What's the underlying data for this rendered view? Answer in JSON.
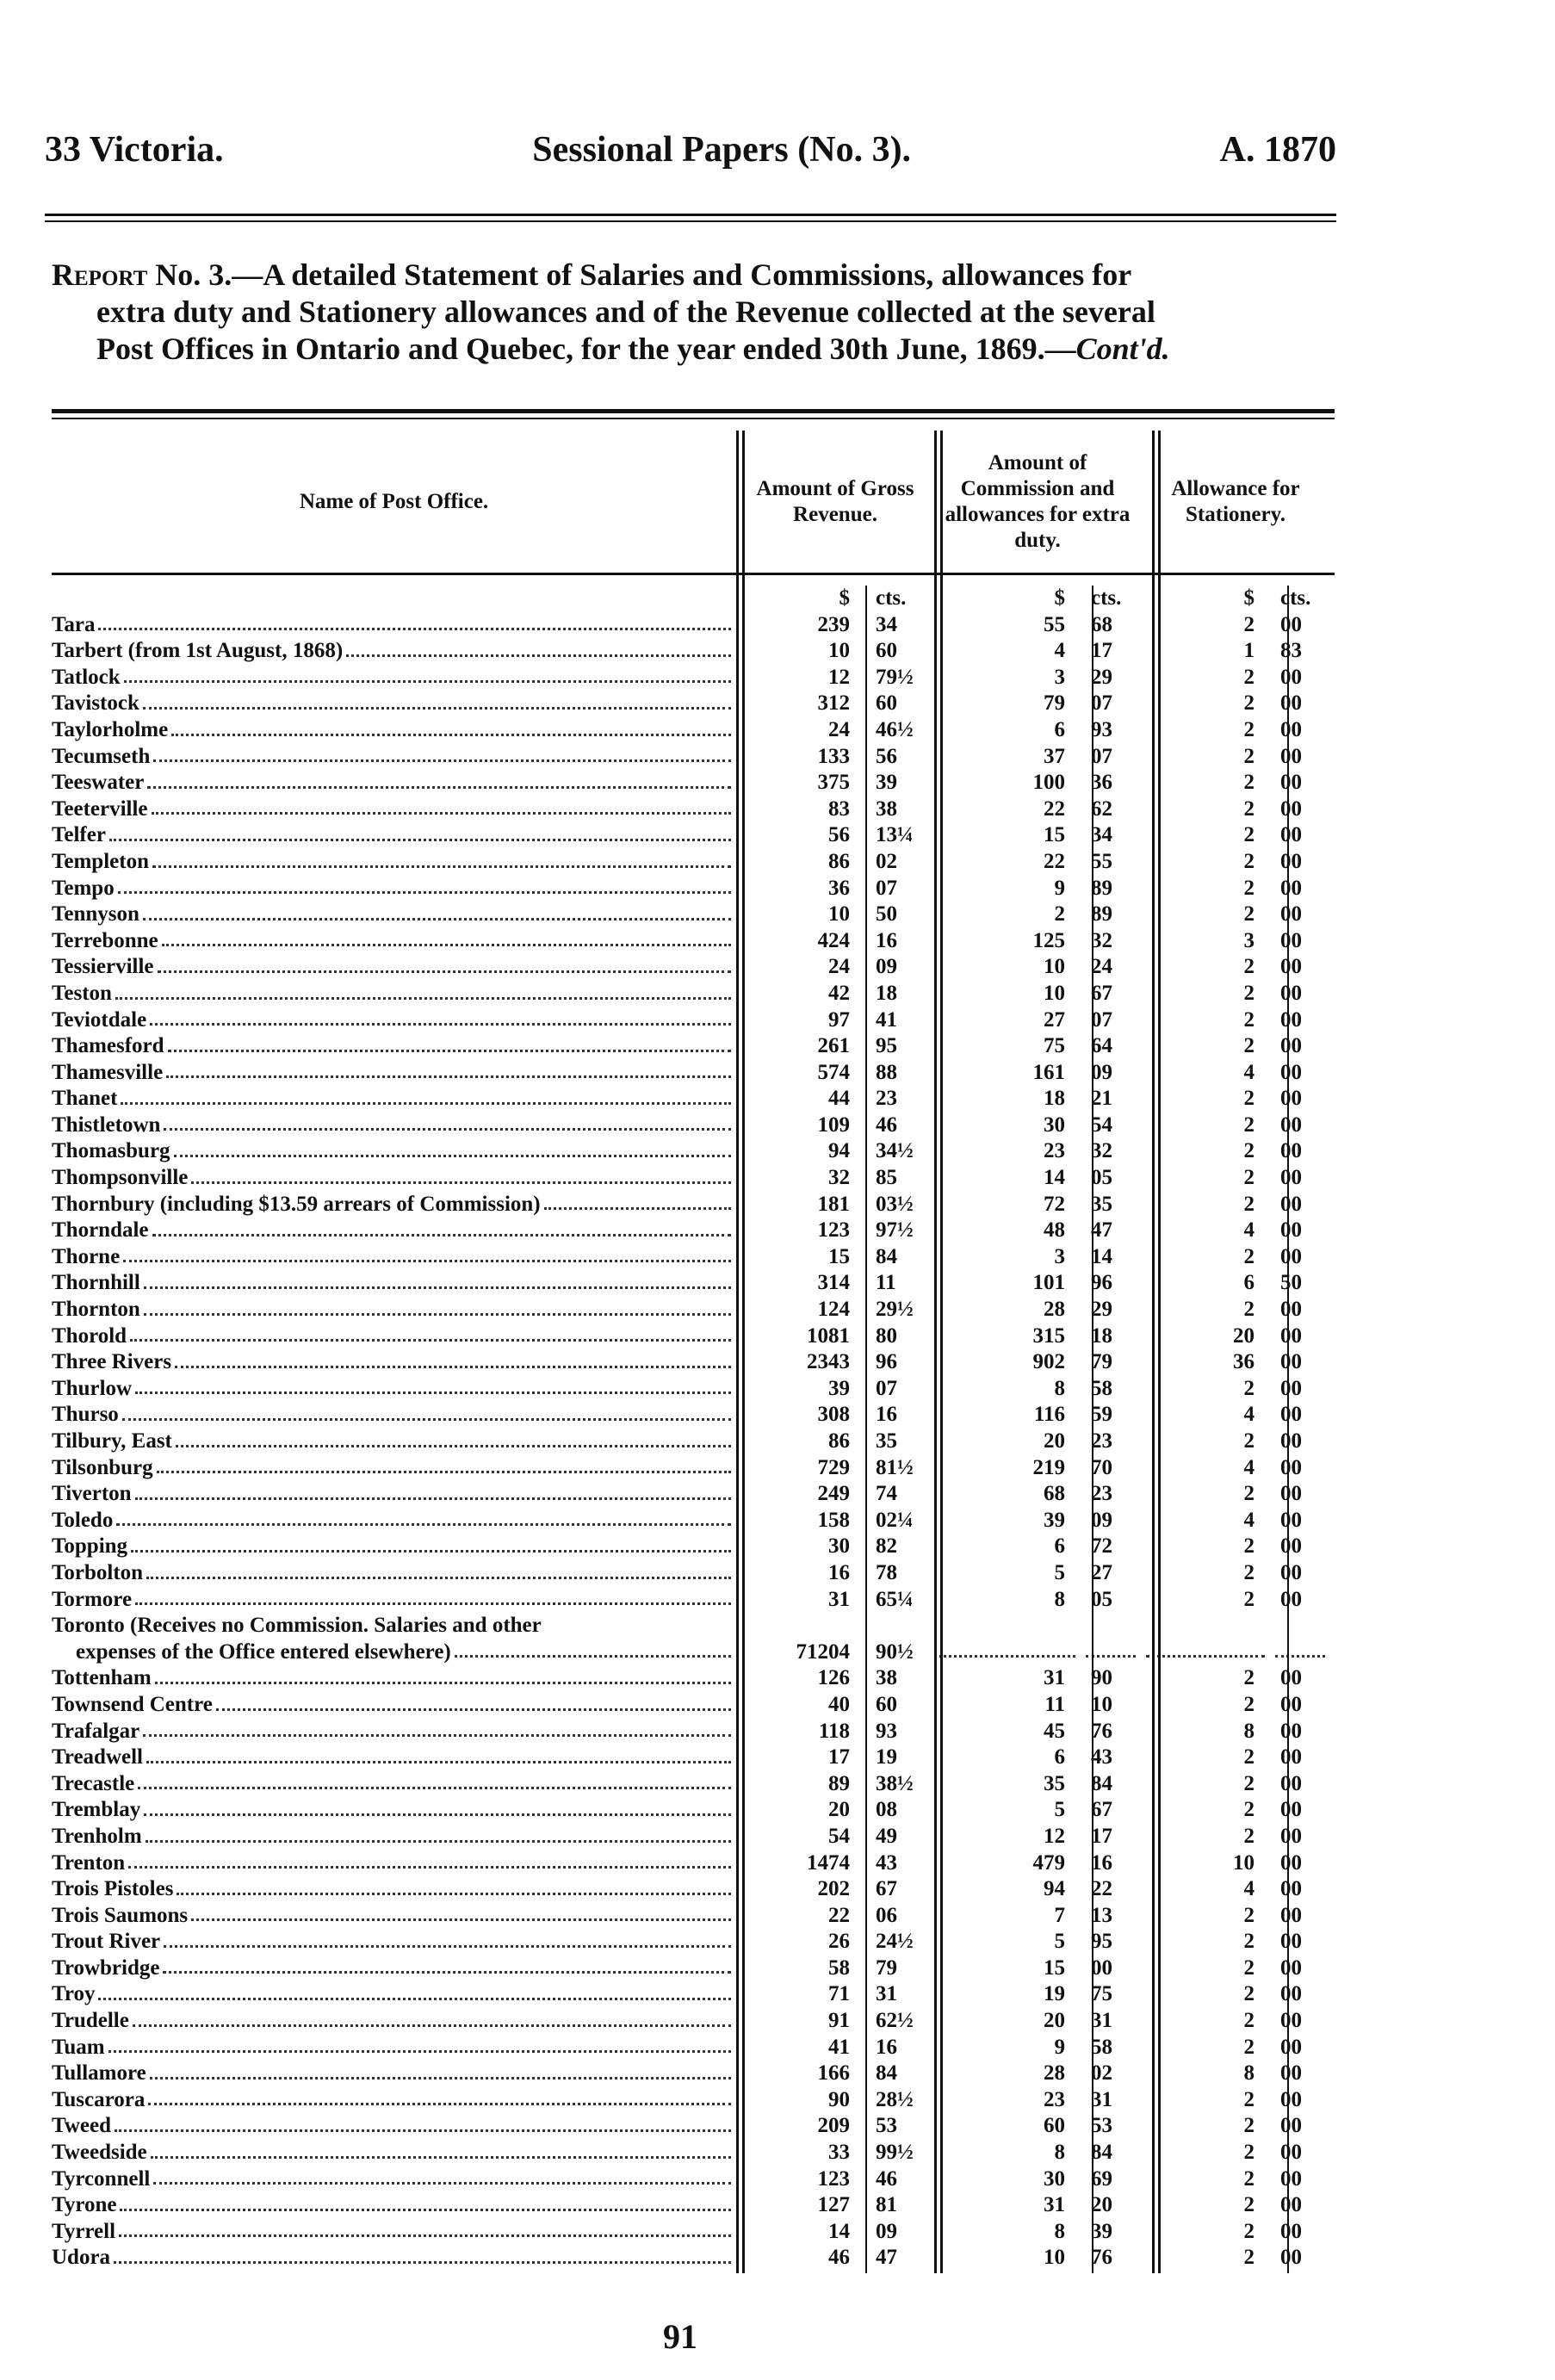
{
  "header": {
    "left": "33 Victoria.",
    "center": "Sessional Papers (No. 3).",
    "right": "A. 1870"
  },
  "title": {
    "report": "Report",
    "line1": " No. 3.—A detailed Statement of Salaries and Commissions, allowances for",
    "line2": "extra duty and Stationery allowances and of the Revenue collected at the several",
    "line3": "Post Offices in Ontario and Quebec, for the year ended 30th June, 1869.—",
    "contd": "Cont'd."
  },
  "columns": {
    "name": "Name of Post Office.",
    "gross": "Amount of Gross Revenue.",
    "commission": "Amount of Commission and allowances for extra duty.",
    "stationery": "Allowance for Stationery.",
    "dollar": "$",
    "cents": "cts."
  },
  "rows": [
    [
      "Tara",
      "239",
      "34",
      "55",
      "68",
      "2",
      "00"
    ],
    [
      "Tarbert (from 1st August, 1868)",
      "10",
      "60",
      "4",
      "17",
      "1",
      "83"
    ],
    [
      "Tatlock",
      "12",
      "79½",
      "3",
      "29",
      "2",
      "00"
    ],
    [
      "Tavistock",
      "312",
      "60",
      "79",
      "07",
      "2",
      "00"
    ],
    [
      "Taylorholme",
      "24",
      "46½",
      "6",
      "93",
      "2",
      "00"
    ],
    [
      "Tecumseth",
      "133",
      "56",
      "37",
      "07",
      "2",
      "00"
    ],
    [
      "Teeswater",
      "375",
      "39",
      "100",
      "36",
      "2",
      "00"
    ],
    [
      "Teeterville",
      "83",
      "38",
      "22",
      "62",
      "2",
      "00"
    ],
    [
      "Telfer",
      "56",
      "13¼",
      "15",
      "34",
      "2",
      "00"
    ],
    [
      "Templeton",
      "86",
      "02",
      "22",
      "55",
      "2",
      "00"
    ],
    [
      "Tempo",
      "36",
      "07",
      "9",
      "89",
      "2",
      "00"
    ],
    [
      "Tennyson",
      "10",
      "50",
      "2",
      "89",
      "2",
      "00"
    ],
    [
      "Terrebonne",
      "424",
      "16",
      "125",
      "32",
      "3",
      "00"
    ],
    [
      "Tessierville",
      "24",
      "09",
      "10",
      "24",
      "2",
      "00"
    ],
    [
      "Teston",
      "42",
      "18",
      "10",
      "67",
      "2",
      "00"
    ],
    [
      "Teviotdale",
      "97",
      "41",
      "27",
      "07",
      "2",
      "00"
    ],
    [
      "Thamesford",
      "261",
      "95",
      "75",
      "64",
      "2",
      "00"
    ],
    [
      "Thamesville",
      "574",
      "88",
      "161",
      "09",
      "4",
      "00"
    ],
    [
      "Thanet",
      "44",
      "23",
      "18",
      "21",
      "2",
      "00"
    ],
    [
      "Thistletown",
      "109",
      "46",
      "30",
      "54",
      "2",
      "00"
    ],
    [
      "Thomasburg",
      "94",
      "34½",
      "23",
      "32",
      "2",
      "00"
    ],
    [
      "Thompsonville",
      "32",
      "85",
      "14",
      "05",
      "2",
      "00"
    ],
    [
      "Thornbury (including $13.59 arrears of Commission)",
      "181",
      "03½",
      "72",
      "35",
      "2",
      "00"
    ],
    [
      "Thorndale",
      "123",
      "97½",
      "48",
      "47",
      "4",
      "00"
    ],
    [
      "Thorne",
      "15",
      "84",
      "3",
      "14",
      "2",
      "00"
    ],
    [
      "Thornhill",
      "314",
      "11",
      "101",
      "96",
      "6",
      "50"
    ],
    [
      "Thornton",
      "124",
      "29½",
      "28",
      "29",
      "2",
      "00"
    ],
    [
      "Thorold",
      "1081",
      "80",
      "315",
      "18",
      "20",
      "00"
    ],
    [
      "Three Rivers",
      "2343",
      "96",
      "902",
      "79",
      "36",
      "00"
    ],
    [
      "Thurlow",
      "39",
      "07",
      "8",
      "58",
      "2",
      "00"
    ],
    [
      "Thurso",
      "308",
      "16",
      "116",
      "59",
      "4",
      "00"
    ],
    [
      "Tilbury, East",
      "86",
      "35",
      "20",
      "23",
      "2",
      "00"
    ],
    [
      "Tilsonburg",
      "729",
      "81½",
      "219",
      "70",
      "4",
      "00"
    ],
    [
      "Tiverton",
      "249",
      "74",
      "68",
      "23",
      "2",
      "00"
    ],
    [
      "Toledo",
      "158",
      "02¼",
      "39",
      "09",
      "4",
      "00"
    ],
    [
      "Topping",
      "30",
      "82",
      "6",
      "72",
      "2",
      "00"
    ],
    [
      "Torbolton",
      "16",
      "78",
      "5",
      "27",
      "2",
      "00"
    ],
    [
      "Tormore",
      "31",
      "65¼",
      "8",
      "05",
      "2",
      "00"
    ],
    [
      "Toronto (Receives no Commission. Salaries and other",
      "",
      "",
      "",
      "",
      "",
      ""
    ],
    [
      "expenses of the Office entered elsewhere)",
      "71204",
      "90½",
      null,
      null,
      null,
      null
    ],
    [
      "Tottenham",
      "126",
      "38",
      "31",
      "90",
      "2",
      "00"
    ],
    [
      "Townsend Centre",
      "40",
      "60",
      "11",
      "10",
      "2",
      "00"
    ],
    [
      "Trafalgar",
      "118",
      "93",
      "45",
      "76",
      "8",
      "00"
    ],
    [
      "Treadwell",
      "17",
      "19",
      "6",
      "43",
      "2",
      "00"
    ],
    [
      "Trecastle",
      "89",
      "38½",
      "35",
      "84",
      "2",
      "00"
    ],
    [
      "Tremblay",
      "20",
      "08",
      "5",
      "67",
      "2",
      "00"
    ],
    [
      "Trenholm",
      "54",
      "49",
      "12",
      "17",
      "2",
      "00"
    ],
    [
      "Trenton",
      "1474",
      "43",
      "479",
      "16",
      "10",
      "00"
    ],
    [
      "Trois Pistoles",
      "202",
      "67",
      "94",
      "22",
      "4",
      "00"
    ],
    [
      "Trois Saumons",
      "22",
      "06",
      "7",
      "13",
      "2",
      "00"
    ],
    [
      "Trout River",
      "26",
      "24½",
      "5",
      "95",
      "2",
      "00"
    ],
    [
      "Trowbridge",
      "58",
      "79",
      "15",
      "00",
      "2",
      "00"
    ],
    [
      "Troy",
      "71",
      "31",
      "19",
      "75",
      "2",
      "00"
    ],
    [
      "Trudelle",
      "91",
      "62½",
      "20",
      "31",
      "2",
      "00"
    ],
    [
      "Tuam",
      "41",
      "16",
      "9",
      "58",
      "2",
      "00"
    ],
    [
      "Tullamore",
      "166",
      "84",
      "28",
      "02",
      "8",
      "00"
    ],
    [
      "Tuscarora",
      "90",
      "28½",
      "23",
      "31",
      "2",
      "00"
    ],
    [
      "Tweed",
      "209",
      "53",
      "60",
      "53",
      "2",
      "00"
    ],
    [
      "Tweedside",
      "33",
      "99½",
      "8",
      "84",
      "2",
      "00"
    ],
    [
      "Tyrconnell",
      "123",
      "46",
      "30",
      "69",
      "2",
      "00"
    ],
    [
      "Tyrone",
      "127",
      "81",
      "31",
      "20",
      "2",
      "00"
    ],
    [
      "Tyrrell",
      "14",
      "09",
      "8",
      "39",
      "2",
      "00"
    ],
    [
      "Udora",
      "46",
      "47",
      "10",
      "76",
      "2",
      "00"
    ]
  ],
  "page_number": "91"
}
